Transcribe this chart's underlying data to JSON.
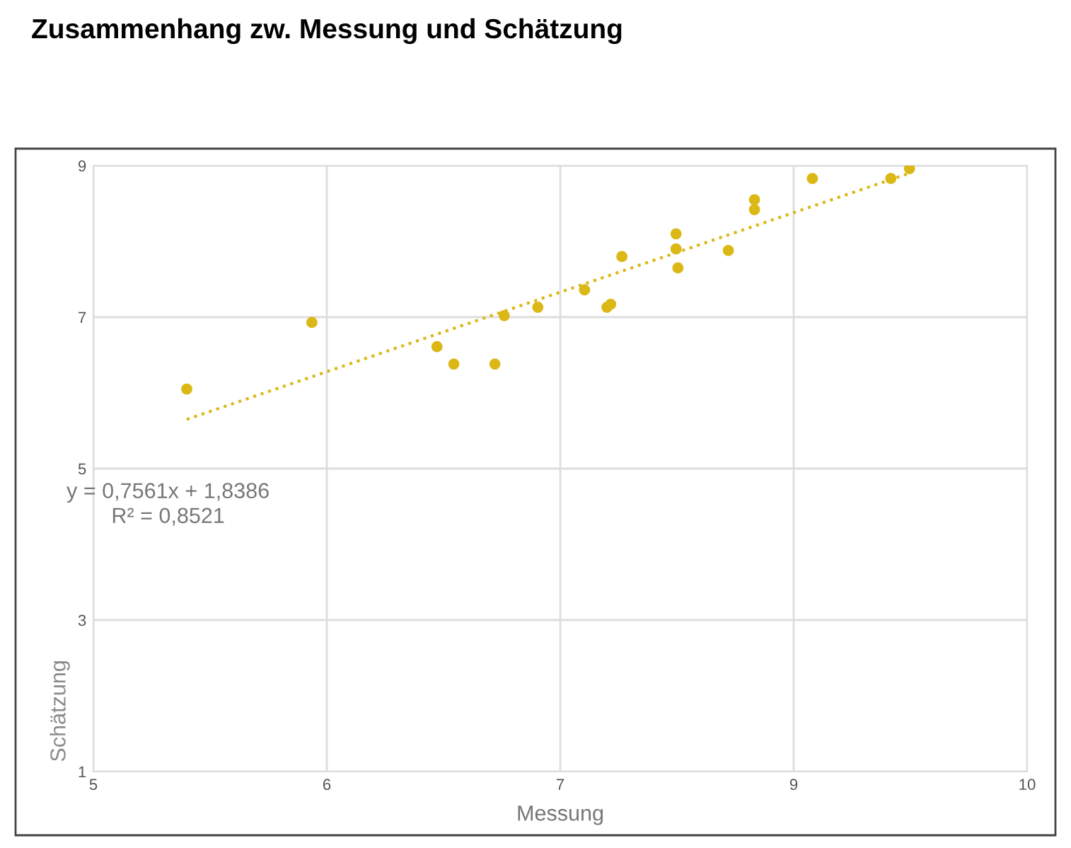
{
  "chart_data": {
    "type": "scatter",
    "title": "Zusammenhang zw. Messung und Schätzung",
    "xlabel": "Messung",
    "ylabel": "Schätzung",
    "xlim": [
      5,
      10
    ],
    "xticks": [
      5,
      {
        "value": 6.25,
        "label": "6"
      },
      {
        "value": 7.5,
        "label": "7"
      },
      {
        "value": 8.75,
        "label": "9"
      },
      10
    ],
    "ylim": [
      1,
      9
    ],
    "yticks": [
      1,
      3,
      5,
      7,
      9
    ],
    "grid": true,
    "legend": false,
    "series": [
      {
        "marker": "circle",
        "color": "#dcb816",
        "x": [
          5.5,
          6.17,
          6.84,
          6.93,
          7.15,
          7.2,
          7.38,
          7.63,
          7.75,
          7.77,
          7.83,
          8.12,
          8.12,
          8.13,
          8.4,
          8.54,
          8.54,
          8.85,
          9.27,
          9.37
        ],
        "values": [
          6.05,
          6.93,
          6.61,
          6.38,
          6.38,
          7.02,
          7.13,
          7.36,
          7.13,
          7.17,
          7.8,
          8.1,
          7.9,
          7.65,
          7.88,
          8.55,
          8.42,
          8.83,
          8.83,
          8.96
        ]
      },
      {
        "type": "line",
        "line_style": "dotted",
        "marker": "none",
        "color": "#dcb816",
        "x": [
          5.5,
          9.37
        ],
        "values": [
          5.65,
          8.9
        ]
      }
    ],
    "annotations": [
      "y = 0,7561x + 1,8386\nR² = 0,8521"
    ]
  }
}
